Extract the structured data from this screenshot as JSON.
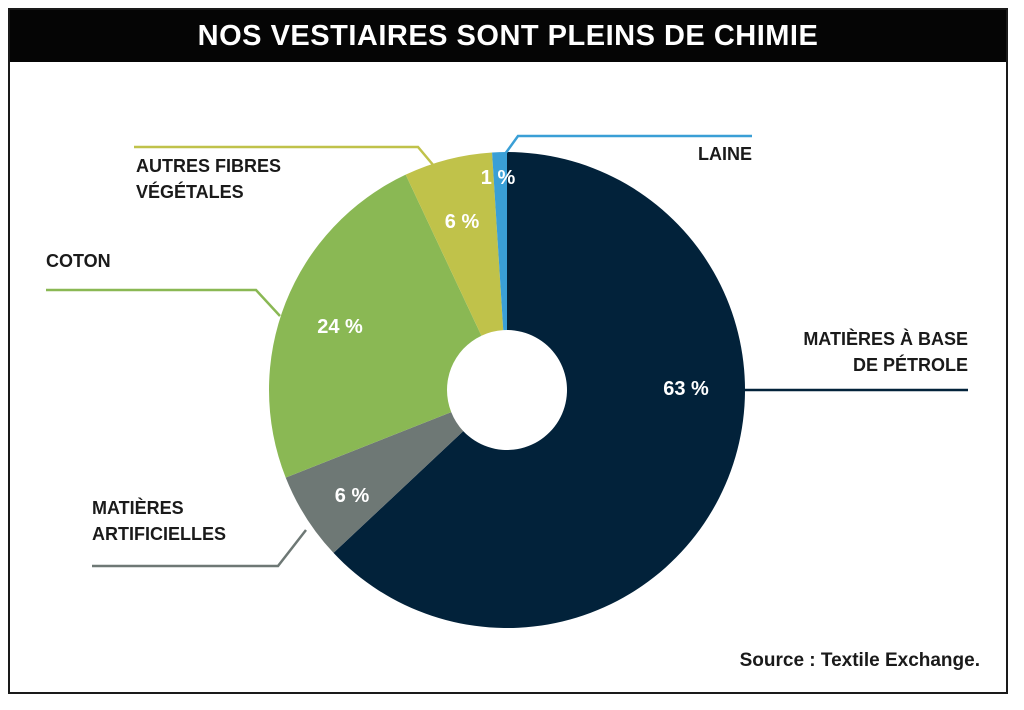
{
  "chart_data": {
    "type": "pie",
    "title": "NOS VESTIAIRES SONT PLEINS DE CHIMIE",
    "donut": true,
    "slices": [
      {
        "label": "MATIÈRES À BASE DE PÉTROLE",
        "label_lines": [
          "MATIÈRES À BASE",
          "DE PÉTROLE"
        ],
        "value": 63,
        "value_label": "63 %",
        "color": "#02223a"
      },
      {
        "label": "MATIÈRES ARTIFICIELLES",
        "label_lines": [
          "MATIÈRES",
          "ARTIFICIELLES"
        ],
        "value": 6,
        "value_label": "6 %",
        "color": "#6e7875"
      },
      {
        "label": "COTON",
        "label_lines": [
          "COTON"
        ],
        "value": 24,
        "value_label": "24 %",
        "color": "#8ab854"
      },
      {
        "label": "AUTRES FIBRES VÉGÉTALES",
        "label_lines": [
          "AUTRES FIBRES",
          "VÉGÉTALES"
        ],
        "value": 6,
        "value_label": "6 %",
        "color": "#c0c24a"
      },
      {
        "label": "LAINE",
        "label_lines": [
          "LAINE"
        ],
        "value": 1,
        "value_label": "1 %",
        "color": "#3a9fd6"
      }
    ],
    "source": "Source : Textile Exchange."
  }
}
